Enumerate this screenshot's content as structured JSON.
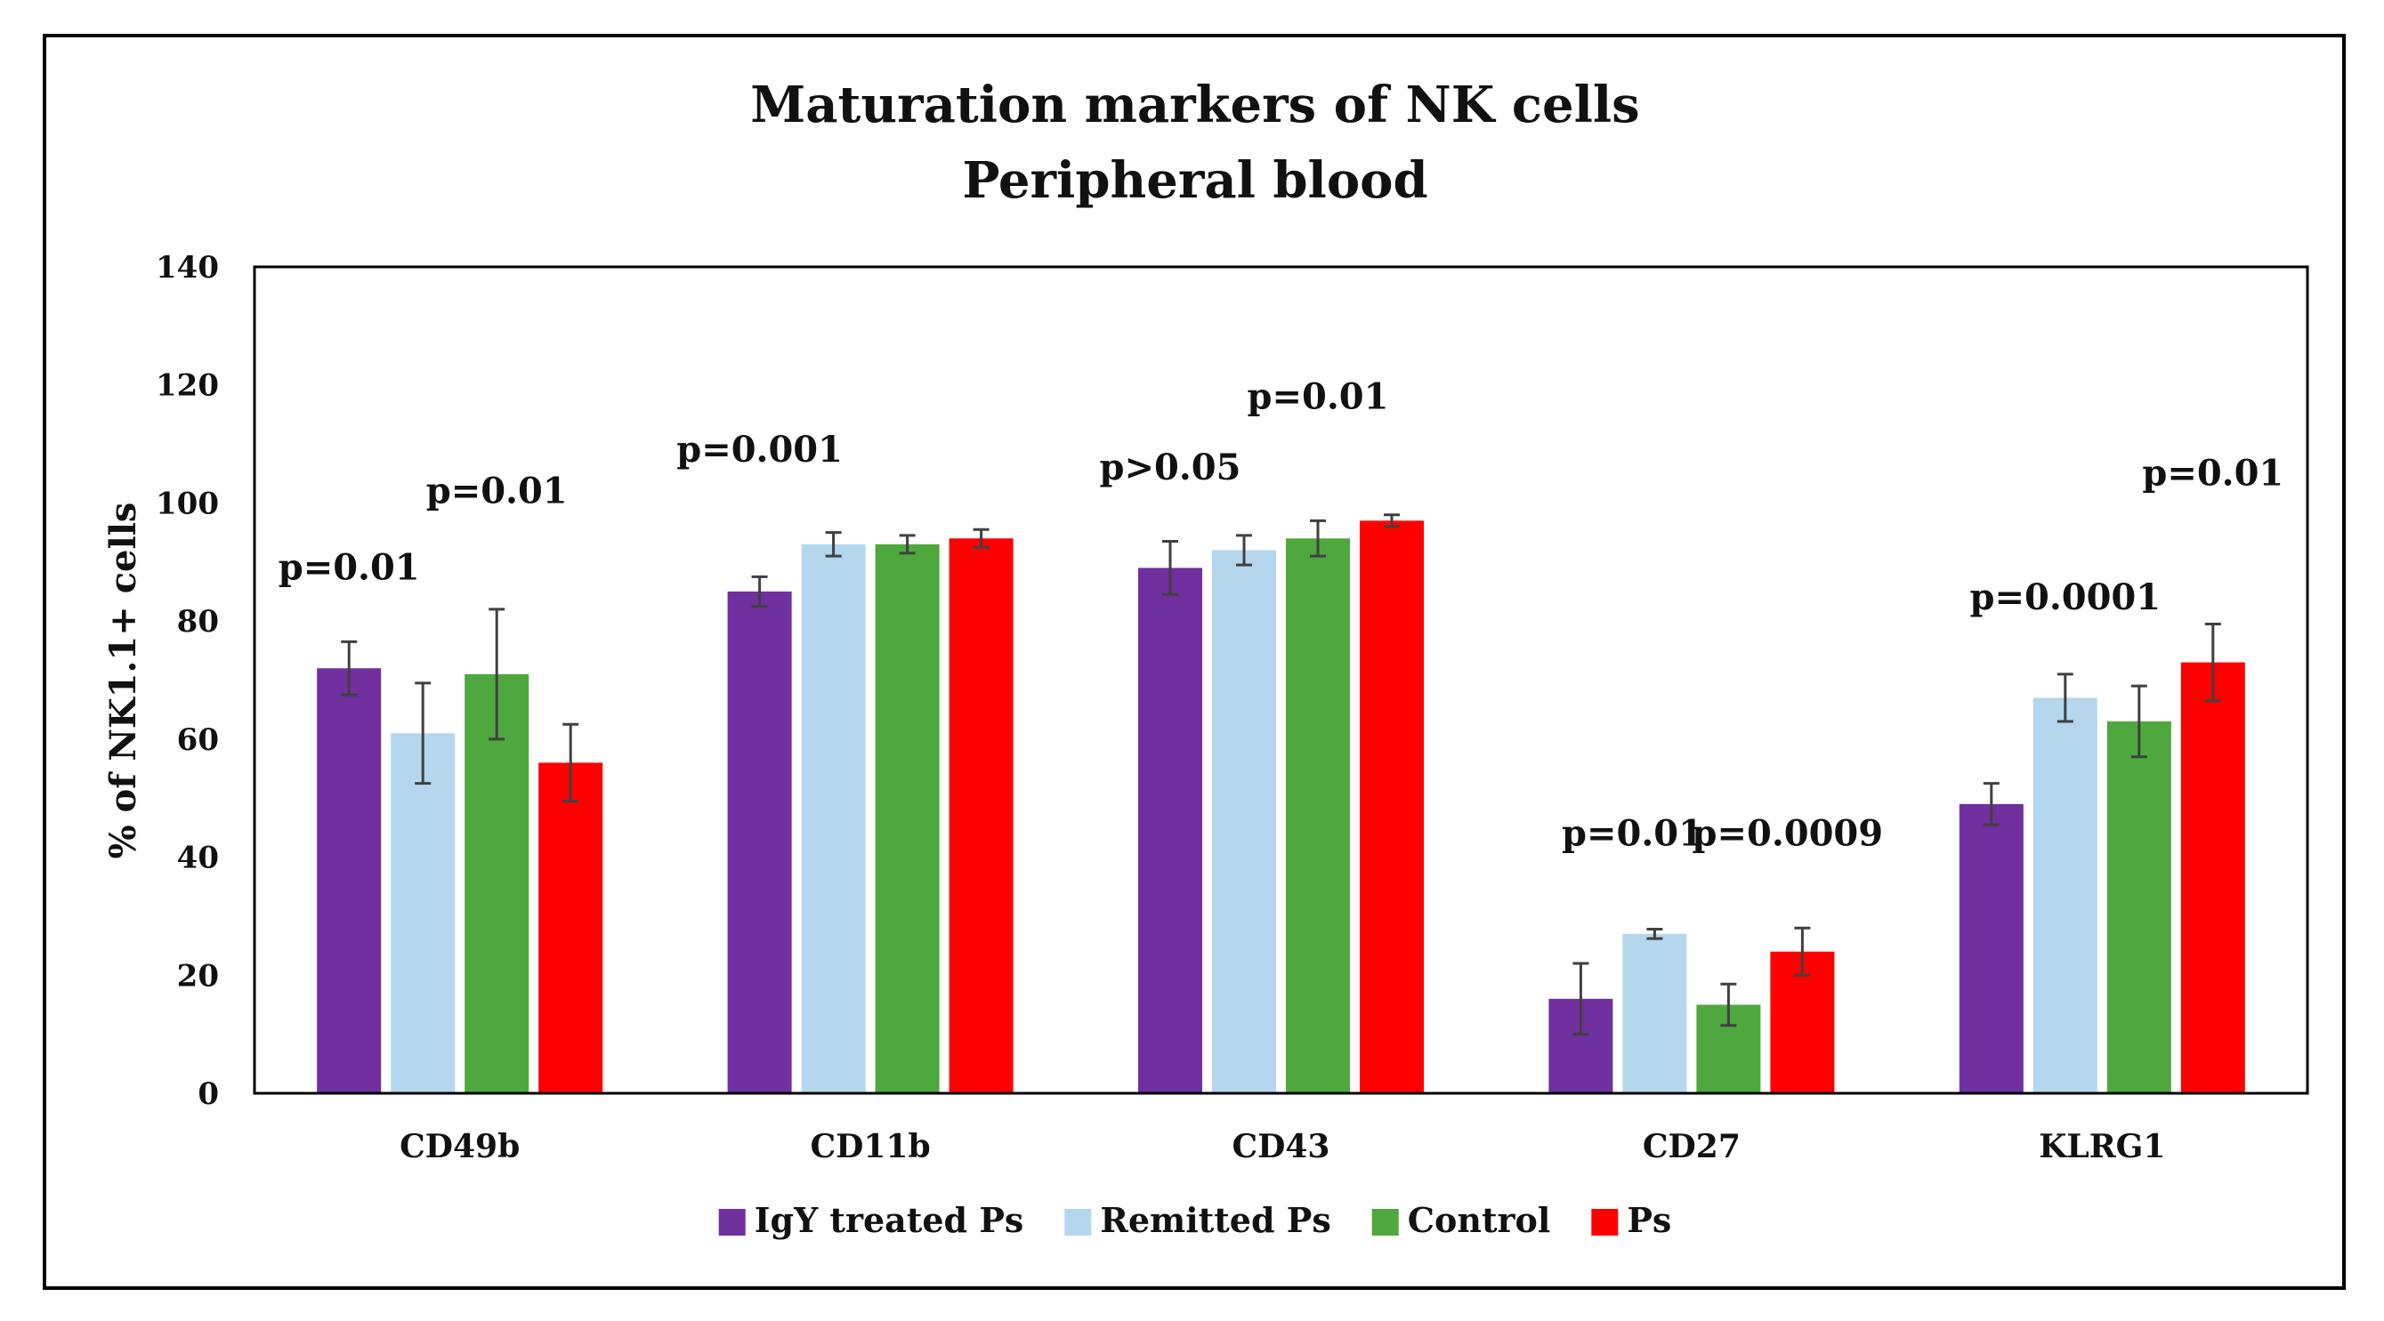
{
  "chart_data": {
    "type": "bar",
    "title": [
      "Maturation markers of NK cells",
      "Peripheral blood"
    ],
    "xlabel": "",
    "ylabel": "% of NK1.1+ cells",
    "ylim": [
      0,
      140
    ],
    "yticks": [
      0,
      20,
      40,
      60,
      80,
      100,
      120,
      140
    ],
    "categories": [
      "CD49b",
      "CD11b",
      "CD43",
      "CD27",
      "KLRG1"
    ],
    "series": [
      {
        "name": "IgY treated Ps",
        "color": "#7030A0",
        "values": [
          72,
          85,
          89,
          16,
          49
        ],
        "errors": [
          4.5,
          2.5,
          4.5,
          6,
          3.5
        ]
      },
      {
        "name": "Remitted Ps",
        "color": "#B4D7EE",
        "values": [
          61,
          93,
          92,
          27,
          67
        ],
        "errors": [
          8.5,
          2,
          2.5,
          0.8,
          4
        ]
      },
      {
        "name": "Control",
        "color": "#4EA83E",
        "values": [
          71,
          93,
          94,
          15,
          63
        ],
        "errors": [
          11,
          1.5,
          3,
          3.5,
          6
        ]
      },
      {
        "name": "Ps",
        "color": "#FF0000",
        "values": [
          56,
          94,
          97,
          24,
          73
        ],
        "errors": [
          6.5,
          1.5,
          1,
          4,
          6.5
        ]
      }
    ],
    "annotations": [
      {
        "text": "p=0.01",
        "category": 0,
        "slot": 0,
        "y": 87
      },
      {
        "text": "p=0.01",
        "category": 0,
        "slot": 2,
        "y": 100
      },
      {
        "text": "p=0.001",
        "category": 1,
        "slot": 0,
        "y": 107
      },
      {
        "text": "p>0.05",
        "category": 2,
        "slot": 0,
        "y": 104
      },
      {
        "text": "p=0.01",
        "category": 2,
        "slot": 2,
        "y": 116
      },
      {
        "text": "p=0.01",
        "category": 3,
        "slot": 0.7,
        "y": 42
      },
      {
        "text": "p=0.0009",
        "category": 3,
        "slot": 2.8,
        "y": 42
      },
      {
        "text": "p=0.0001",
        "category": 4,
        "slot": 1,
        "y": 82
      },
      {
        "text": "p=0.01",
        "category": 4,
        "slot": 3,
        "y": 103
      }
    ],
    "legend": "bottom-center",
    "grid": false
  }
}
